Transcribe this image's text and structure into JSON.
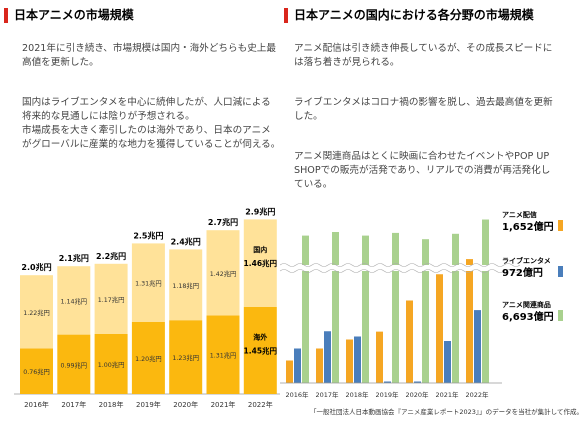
{
  "left": {
    "title": "日本アニメの市場規模",
    "p1_l1": "2021年に引き続き、市場規模は国内・海外どちらも史上最",
    "p1_l2": "高値を更新した。",
    "p2_l1": "国内はライブエンタメを中心に続伸したが、人口減による",
    "p2_l2": "将来的な見通しには陰りが予想される。",
    "p2_l3": "市場成長を大きく牽引したのは海外であり、日本のアニメ",
    "p2_l4": "がグローバルに産業的な地力を獲得していることが伺える。"
  },
  "right": {
    "title": "日本アニメの国内における各分野の市場規模",
    "p1_l1": "アニメ配信は引き続き伸長しているが、その成長スピードに",
    "p1_l2": "は落ち着きが見られる。",
    "p2_l1": "ライブエンタメはコロナ禍の影響を脱し、過去最高値を更新",
    "p2_l2": "した。",
    "p3_l1": "アニメ関連商品はとくに映画に合わせたイベントやPOP UP",
    "p3_l2": "SHOPでの販売が活発であり、リアルでの消費が再活発化し",
    "p3_l3": "ている。"
  },
  "source": "「一般社団法人日本動画協会『アニメ産業レポート2023』」のデータを当社が集計して作成。",
  "colors": {
    "domestic": "#ffe299",
    "overseas": "#fbb80f",
    "streaming": "#f5a623",
    "live": "#4a7ebb",
    "goods": "#a9d18e",
    "accent": "#d9261c"
  },
  "chart_data": [
    {
      "type": "bar",
      "stacked": true,
      "categories": [
        "2016年",
        "2017年",
        "2018年",
        "2019年",
        "2020年",
        "2021年",
        "2022年"
      ],
      "totals": [
        2.0,
        2.1,
        2.2,
        2.5,
        2.4,
        2.7,
        2.9
      ],
      "total_labels": [
        "2.0兆円",
        "2.1兆円",
        "2.2兆円",
        "2.5兆円",
        "2.4兆円",
        "2.7兆円",
        "2.9兆円"
      ],
      "series": [
        {
          "name": "海外",
          "values": [
            0.76,
            0.99,
            1.0,
            1.2,
            1.23,
            1.31,
            1.45
          ],
          "labels": [
            "0.76兆円",
            "0.99兆円",
            "1.00兆円",
            "1.20兆円",
            "1.23兆円",
            "1.31兆円",
            "1.45兆円"
          ]
        },
        {
          "name": "国内",
          "values": [
            1.22,
            1.14,
            1.17,
            1.31,
            1.18,
            1.42,
            1.46
          ],
          "labels": [
            "1.22兆円",
            "1.14兆円",
            "1.17兆円",
            "1.31兆円",
            "1.18兆円",
            "1.42兆円",
            "1.46兆円"
          ]
        }
      ],
      "ylim": [
        0,
        3.1
      ]
    },
    {
      "type": "bar",
      "axis_break": true,
      "categories": [
        "2016年",
        "2017年",
        "2018年",
        "2019年",
        "2020年",
        "2021年",
        "2022年"
      ],
      "series": [
        {
          "name": "アニメ配信",
          "value_label": "1,652億円",
          "values": [
            300,
            460,
            580,
            685,
            1100,
            1450,
            1652
          ]
        },
        {
          "name": "ライブエンタメ",
          "value_label": "972億円",
          "values": [
            460,
            690,
            620,
            20,
            20,
            560,
            972
          ]
        },
        {
          "name": "アニメ関連商品",
          "value_label": "6,693億円",
          "values": [
            5800,
            6000,
            5800,
            5950,
            5600,
            5900,
            6693
          ]
        }
      ]
    }
  ]
}
